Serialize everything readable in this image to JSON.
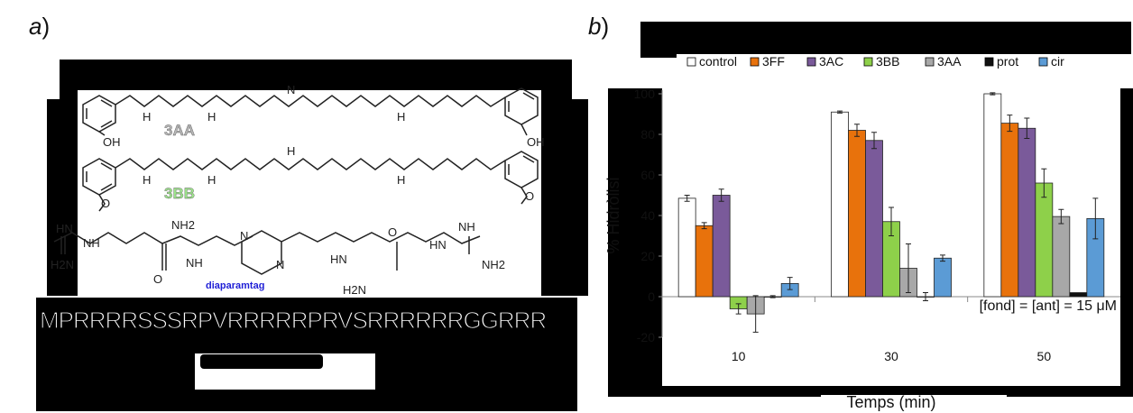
{
  "panel_a": {
    "label": "a",
    "compound_1": "3AA",
    "compound_2": "3BB",
    "compound_3": "diaparamtag",
    "sequence": "MPRRRRSSSRPVRRRRRPRVSRRRRRRGGRRR",
    "atoms": {
      "oh": "OH",
      "o": "O",
      "h": "H",
      "nh": "NH",
      "hn": "HN",
      "nh2": "NH2",
      "h2n": "H2N",
      "n": "N"
    },
    "colors": {
      "3AA": "#b8b8b8",
      "3BB": "#9ee68c",
      "tag": "#1f1fd6"
    }
  },
  "panel_b": {
    "label": "b",
    "legend_box_color": "#000000"
  },
  "chart_data": {
    "type": "bar",
    "title": "",
    "xlabel": "Temps (min)",
    "ylabel": "% Hidròlisi",
    "categories": [
      "10",
      "30",
      "50"
    ],
    "ylim": [
      -20,
      100
    ],
    "yticks": [
      -20,
      0,
      20,
      40,
      60,
      80,
      100
    ],
    "grid": false,
    "legend_position": "top",
    "annotation": "[fond] = [ant] = 15 μM",
    "series": [
      {
        "name": "control",
        "color": "#ffffff",
        "values": [
          48.5,
          91,
          100
        ],
        "errors": [
          1.5,
          0.5,
          0.5
        ]
      },
      {
        "name": "3FF",
        "color": "#e8720c",
        "values": [
          35,
          82,
          85.5
        ],
        "errors": [
          1.5,
          3,
          4
        ]
      },
      {
        "name": "3AC",
        "color": "#7a5a9a",
        "values": [
          50,
          77,
          83
        ],
        "errors": [
          3,
          4,
          5
        ]
      },
      {
        "name": "3BB",
        "color": "#8ed04a",
        "values": [
          -6,
          37,
          56
        ],
        "errors": [
          2.5,
          7,
          7
        ]
      },
      {
        "name": "3AA",
        "color": "#a8a8a8",
        "values": [
          -8.5,
          14,
          39.5
        ],
        "errors": [
          9,
          12,
          3.5
        ]
      },
      {
        "name": "prot",
        "color": "#111111",
        "values": [
          0,
          0,
          2
        ],
        "errors": [
          0.5,
          2,
          0
        ]
      },
      {
        "name": "cir",
        "color": "#5b9bd5",
        "values": [
          6.5,
          19,
          38.5
        ],
        "errors": [
          3,
          1.5,
          10
        ]
      }
    ]
  }
}
